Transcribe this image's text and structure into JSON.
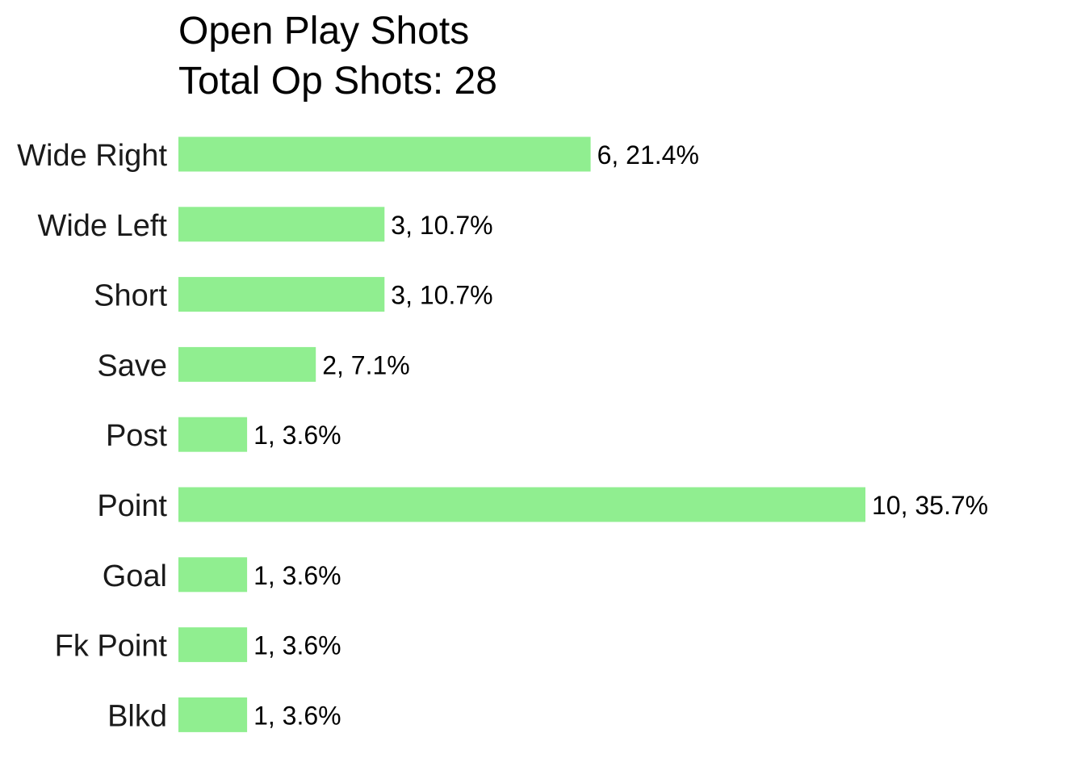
{
  "chart_data": {
    "type": "bar",
    "orientation": "horizontal",
    "title": "Open Play Shots",
    "subtitle": "Total Op Shots: 28",
    "categories": [
      "Wide Right",
      "Wide Left",
      "Short",
      "Save",
      "Post",
      "Point",
      "Goal",
      "Fk Point",
      "Blkd"
    ],
    "values": [
      6,
      3,
      3,
      2,
      1,
      10,
      1,
      1,
      1
    ],
    "data_labels": [
      "6, 21.4%",
      "3, 10.7%",
      "3, 10.7%",
      "2, 7.1%",
      "1, 3.6%",
      "10, 35.7%",
      "1, 3.6%",
      "1, 3.6%",
      "1, 3.6%"
    ],
    "xlim": [
      0,
      10
    ],
    "bar_color": "#90EE90",
    "grid": false,
    "legend": "none",
    "xlabel": "",
    "ylabel": ""
  }
}
